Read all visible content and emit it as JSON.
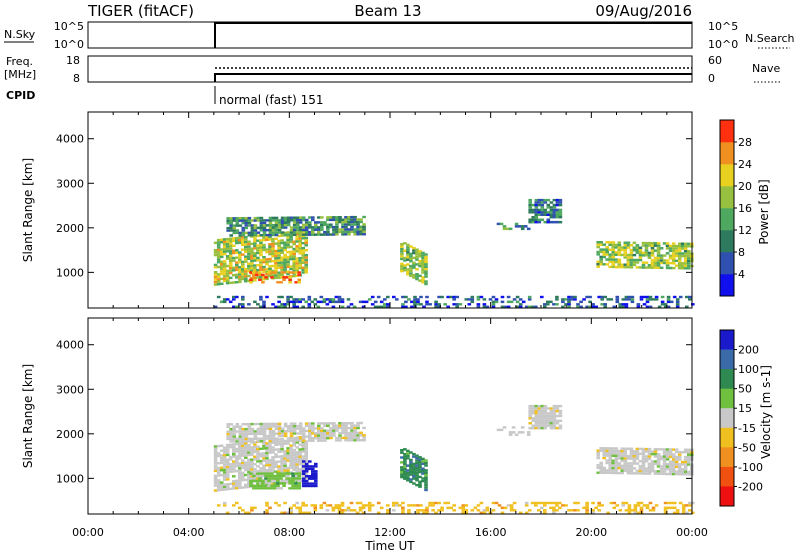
{
  "header": {
    "radar": "TIGER (fitACF)",
    "beam": "Beam 13",
    "date": "09/Aug/2016"
  },
  "strips": {
    "nsky": {
      "label": "N.Sky",
      "ticks_left": [
        "10^5",
        "10^0"
      ],
      "ticks_right": [
        "10^5",
        "10^0"
      ],
      "right_label": "N.Search"
    },
    "freq": {
      "label_line1": "Freq.",
      "label_line2": "[MHz]",
      "ticks_left": [
        "18",
        "8"
      ],
      "ticks_right": [
        "60",
        "0"
      ],
      "right_label": "Nave"
    },
    "cpid": {
      "label": "CPID",
      "text": "normal (fast) 151"
    }
  },
  "chart_data": [
    {
      "type": "heatmap",
      "name": "power",
      "ylabel": "Slant Range [km]",
      "yticks": [
        "1000",
        "2000",
        "3000",
        "4000"
      ],
      "ylim": [
        200,
        4600
      ],
      "xlim": [
        0,
        24
      ],
      "xticks": [
        "00:00",
        "04:00",
        "08:00",
        "12:00",
        "16:00",
        "20:00",
        "00:00"
      ],
      "colorbar": {
        "label": "Power [dB]",
        "ticks": [
          "4",
          "8",
          "12",
          "16",
          "20",
          "24",
          "28"
        ],
        "colors": [
          "#1010ee",
          "#3050b0",
          "#2e7a5e",
          "#4fa860",
          "#98c040",
          "#e8d020",
          "#f09020",
          "#ff3010"
        ]
      },
      "regions": [
        {
          "t0": 5.0,
          "t1": 8.6,
          "r0": 700,
          "r1": 1700,
          "slope": 220,
          "intensity": 0.62
        },
        {
          "t0": 6.4,
          "t1": 8.4,
          "r0": 750,
          "r1": 1000,
          "slope": 0,
          "intensity": 0.88
        },
        {
          "t0": 5.5,
          "t1": 11.0,
          "r0": 1800,
          "r1": 2200,
          "slope": 30,
          "intensity": 0.35
        },
        {
          "t0": 12.4,
          "t1": 13.4,
          "r0": 1000,
          "r1": 1700,
          "slope": -300,
          "intensity": 0.55
        },
        {
          "t0": 16.0,
          "t1": 17.5,
          "r0": 1950,
          "r1": 2150,
          "slope": 0,
          "intensity": 0.3
        },
        {
          "t0": 17.5,
          "t1": 18.8,
          "r0": 2100,
          "r1": 2600,
          "slope": 0,
          "intensity": 0.25
        },
        {
          "t0": 20.2,
          "t1": 24.0,
          "r0": 1100,
          "r1": 1700,
          "slope": -40,
          "intensity": 0.55
        },
        {
          "t0": 5.0,
          "t1": 24.0,
          "r0": 200,
          "r1": 450,
          "slope": 0,
          "intensity": 0.18
        }
      ]
    },
    {
      "type": "heatmap",
      "name": "velocity",
      "ylabel": "Slant Range [km]",
      "yticks": [
        "1000",
        "2000",
        "3000",
        "4000"
      ],
      "ylim": [
        200,
        4600
      ],
      "xlim": [
        0,
        24
      ],
      "xticks": [
        "00:00",
        "04:00",
        "08:00",
        "12:00",
        "16:00",
        "20:00",
        "00:00"
      ],
      "xlabel": "Time UT",
      "colorbar": {
        "label": "Velocity [m s-1]",
        "ticks": [
          "200",
          "100",
          "50",
          "15",
          "-15",
          "-50",
          "-100",
          "-200"
        ],
        "colors": [
          "#1a1acc",
          "#3a6aa8",
          "#2e8a50",
          "#70c040",
          "#c8c8c8",
          "#f0c020",
          "#f09020",
          "#f05010",
          "#ee1010"
        ]
      },
      "regions": [
        {
          "t0": 5.0,
          "t1": 8.6,
          "r0": 700,
          "r1": 1700,
          "slope": 220,
          "class": 4
        },
        {
          "t0": 6.4,
          "t1": 8.4,
          "r0": 750,
          "r1": 1100,
          "slope": 0,
          "class": 3
        },
        {
          "t0": 8.5,
          "t1": 9.0,
          "r0": 800,
          "r1": 1400,
          "slope": 0,
          "class": 0
        },
        {
          "t0": 5.5,
          "t1": 11.0,
          "r0": 1800,
          "r1": 2200,
          "slope": 30,
          "class": 4
        },
        {
          "t0": 12.4,
          "t1": 13.4,
          "r0": 1000,
          "r1": 1700,
          "slope": -300,
          "class": 2
        },
        {
          "t0": 16.0,
          "t1": 17.5,
          "r0": 1950,
          "r1": 2150,
          "slope": 0,
          "class": 4
        },
        {
          "t0": 17.5,
          "t1": 18.8,
          "r0": 2100,
          "r1": 2600,
          "slope": 0,
          "class": 4
        },
        {
          "t0": 20.2,
          "t1": 24.0,
          "r0": 1100,
          "r1": 1700,
          "slope": -40,
          "class": 4
        },
        {
          "t0": 5.0,
          "t1": 24.0,
          "r0": 200,
          "r1": 450,
          "slope": 0,
          "class": 5
        }
      ]
    }
  ]
}
